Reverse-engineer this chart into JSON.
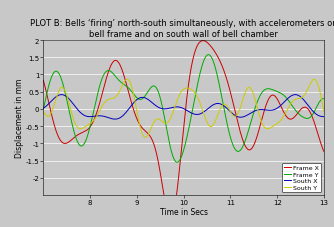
{
  "title_line1": "PLOT B: Bells ‘firing’ north-south simultaneously, with accelerometers on",
  "title_line2": "bell frame and on south wall of bell chamber",
  "xlabel": "Time in Secs",
  "ylabel": "Displacement in mm",
  "xlim": [
    7,
    13
  ],
  "ylim": [
    -2.5,
    2.0
  ],
  "yticks": [
    -2.0,
    -1.5,
    -1.0,
    -0.5,
    0.0,
    0.5,
    1.0,
    1.5,
    2.0
  ],
  "ytick_labels": [
    "-2",
    "-1.5",
    "-1",
    "-0.5",
    "0",
    "0.5",
    "1",
    "1.5",
    "2"
  ],
  "xticks": [
    8,
    9,
    10,
    11,
    12,
    13
  ],
  "xtick_labels": [
    "8",
    "9",
    "10",
    "11",
    "12",
    "13"
  ],
  "legend_labels": [
    "Frame X",
    "Frame Y",
    "South X",
    "South Y"
  ],
  "line_colors": [
    "#cc0000",
    "#00aa00",
    "#0000bb",
    "#cccc00"
  ],
  "background_color": "#c8c8c8",
  "title_fontsize": 6.0,
  "axis_label_fontsize": 5.5,
  "tick_fontsize": 5.0,
  "legend_fontsize": 4.5,
  "linewidth": 0.7
}
